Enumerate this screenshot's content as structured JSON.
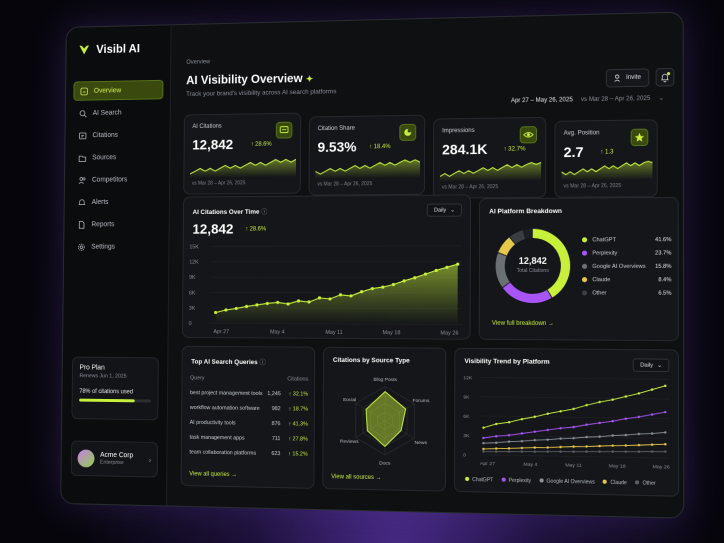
{
  "app": {
    "name": "Visibl AI"
  },
  "nav": [
    {
      "label": "Overview",
      "icon": "home-icon",
      "active": true
    },
    {
      "label": "AI Search",
      "icon": "search-icon"
    },
    {
      "label": "Citations",
      "icon": "quote-icon"
    },
    {
      "label": "Sources",
      "icon": "folder-icon"
    },
    {
      "label": "Competitors",
      "icon": "users-icon"
    },
    {
      "label": "Alerts",
      "icon": "bell-icon"
    },
    {
      "label": "Reports",
      "icon": "file-icon"
    },
    {
      "label": "Settings",
      "icon": "gear-icon"
    }
  ],
  "plan": {
    "title": "Pro Plan",
    "renews": "Renews Jun 1, 2025",
    "usage": "78% of citations used",
    "usage_pct": 0.78
  },
  "account": {
    "name": "Acme Corp",
    "role": "Enterprise"
  },
  "header": {
    "breadcrumb": "Overview",
    "title": "AI Visibility Overview",
    "subtitle": "Track your brand's visibility across AI search platforms",
    "invite": "Invite",
    "date_range": "Apr 27 – May 26, 2025",
    "compare": "vs Mar 28 – Apr 26, 2025"
  },
  "kpis": [
    {
      "label": "AI Citations",
      "value": "12,842",
      "change": "↑ 28.6%",
      "compare": "vs Mar 28 – Apr 26, 2025",
      "icon": "message-icon"
    },
    {
      "label": "Citation Share",
      "value": "9.53%",
      "change": "↑ 18.4%",
      "compare": "vs Mar 28 – Apr 26, 2025",
      "icon": "pie-icon"
    },
    {
      "label": "Impressions",
      "value": "284.1K",
      "change": "↑ 32.7%",
      "compare": "vs Mar 28 – Apr 26, 2025",
      "icon": "eye-icon"
    },
    {
      "label": "Avg. Position",
      "value": "2.7",
      "change": "↑ 1.3",
      "compare": "vs Mar 28 – Apr 26, 2025",
      "icon": "star-icon"
    }
  ],
  "citations_chart": {
    "title": "AI Citations Over Time",
    "value": "12,842",
    "change": "↑ 28.6%",
    "granularity": "Daily"
  },
  "platform_breakdown": {
    "title": "AI Platform Breakdown",
    "center_value": "12,842",
    "center_label": "Total Citations",
    "link": "View full breakdown →"
  },
  "queries": {
    "title": "Top AI Search Queries",
    "col_query": "Query",
    "col_citations": "Citations",
    "link": "View all queries →",
    "rows": [
      {
        "q": "best project management tools",
        "n": "1,245",
        "c": "↑ 32.1%"
      },
      {
        "q": "workflow automation software",
        "n": "982",
        "c": "↑ 18.7%"
      },
      {
        "q": "AI productivity tools",
        "n": "876",
        "c": "↑ 41.3%"
      },
      {
        "q": "task management apps",
        "n": "711",
        "c": "↑ 27.8%"
      },
      {
        "q": "team collaboration platforms",
        "n": "623",
        "c": "↑ 15.2%"
      }
    ]
  },
  "sources": {
    "title": "Citations by Source Type",
    "link": "View all sources →"
  },
  "trend": {
    "title": "Visibility Trend by Platform",
    "granularity": "Daily"
  },
  "colors": {
    "accent": "#c8f03a",
    "purple": "#a855f7",
    "bg": "#0e1012"
  },
  "chart_data": [
    {
      "type": "area",
      "name": "AI Citations Over Time",
      "x": [
        "Apr 27",
        "",
        "",
        "",
        "",
        "May 4",
        "",
        "",
        "",
        "",
        "",
        "May 11",
        "",
        "",
        "",
        "",
        "",
        "May 18",
        "",
        "",
        "",
        "",
        "",
        "May 26"
      ],
      "values": [
        2100,
        2600,
        2900,
        3300,
        3600,
        3900,
        4100,
        3800,
        4400,
        4200,
        5000,
        4800,
        5600,
        5400,
        6200,
        6800,
        7100,
        7600,
        8300,
        8900,
        9600,
        10300,
        10900,
        11500
      ],
      "yticks": [
        "15K",
        "12K",
        "9K",
        "6K",
        "3K",
        "0"
      ],
      "xticks": [
        "Apr 27",
        "May 4",
        "May 11",
        "May 18",
        "May 26"
      ],
      "ylim": [
        0,
        15000
      ]
    },
    {
      "type": "pie",
      "name": "AI Platform Breakdown",
      "series": [
        {
          "name": "ChatGPT",
          "value": 41.6,
          "color": "#c8f03a"
        },
        {
          "name": "Perplexity",
          "value": 23.7,
          "color": "#a855f7"
        },
        {
          "name": "Google AI Overviews",
          "value": 15.8,
          "color": "#6b7075"
        },
        {
          "name": "Claude",
          "value": 8.4,
          "color": "#e8c84a"
        },
        {
          "name": "Other",
          "value": 6.5,
          "color": "#3a3e43"
        }
      ],
      "labels": [
        "41.6%",
        "23.7%",
        "15.8%",
        "8.4%",
        "6.5%"
      ]
    },
    {
      "type": "radar",
      "name": "Citations by Source Type",
      "categories": [
        "Blog Posts",
        "Forums",
        "News",
        "Docs",
        "Reviews",
        "Social"
      ],
      "values": [
        0.85,
        0.7,
        0.55,
        0.75,
        0.6,
        0.65
      ]
    },
    {
      "type": "line",
      "name": "Visibility Trend by Platform",
      "xticks": [
        "Apr 27",
        "May 4",
        "May 11",
        "May 18",
        "May 26"
      ],
      "yticks": [
        "12K",
        "9K",
        "6K",
        "3K",
        "0"
      ],
      "ylim": [
        0,
        12000
      ],
      "series": [
        {
          "name": "ChatGPT",
          "color": "#c8f03a",
          "values": [
            4200,
            4800,
            5100,
            5600,
            6000,
            6500,
            6900,
            7300,
            7900,
            8400,
            8800,
            9300,
            9800,
            10400,
            11000
          ]
        },
        {
          "name": "Perplexity",
          "color": "#a855f7",
          "values": [
            2600,
            2900,
            3100,
            3400,
            3700,
            4000,
            4300,
            4500,
            4900,
            5200,
            5500,
            5900,
            6200,
            6600,
            7000
          ]
        },
        {
          "name": "Google AI Overviews",
          "color": "#8a9097",
          "values": [
            1800,
            1900,
            2100,
            2200,
            2400,
            2500,
            2700,
            2800,
            3000,
            3100,
            3300,
            3400,
            3600,
            3700,
            3900
          ]
        },
        {
          "name": "Claude",
          "color": "#e8c84a",
          "values": [
            900,
            1000,
            1050,
            1150,
            1250,
            1300,
            1400,
            1500,
            1550,
            1650,
            1750,
            1800,
            1900,
            2000,
            2100
          ]
        },
        {
          "name": "Other",
          "color": "#5a5e63",
          "values": [
            500,
            520,
            560,
            600,
            620,
            660,
            700,
            720,
            760,
            800,
            830,
            860,
            900,
            940,
            980
          ]
        }
      ]
    }
  ]
}
